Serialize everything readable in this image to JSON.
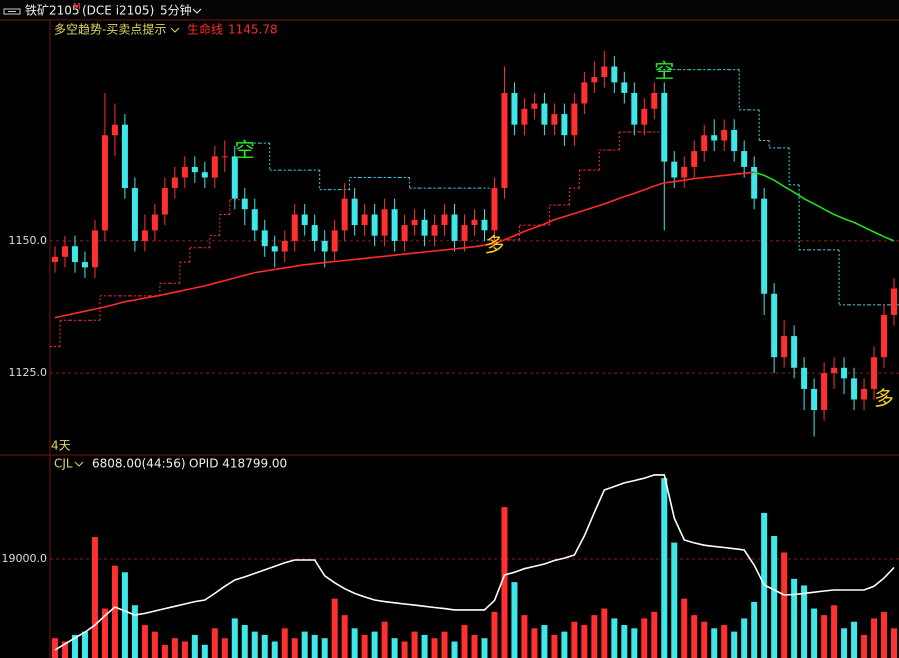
{
  "toolbar": {
    "symbol": "铁矿2105",
    "flag": "M",
    "code": "(DCE i2105)",
    "period": "5分钟"
  },
  "chart_data": [
    {
      "type": "candlestick",
      "indicator": "多空趋势-买卖点提示",
      "span_label": "4天",
      "lifeline": {
        "name": "生命线",
        "value": 1145.78,
        "color": "#ff2a2a"
      },
      "up_color": "#ff3030",
      "down_color": "#3ee8e8",
      "ylim": [
        1109.5,
        1191.8
      ],
      "yticks": [
        {
          "value": 1125,
          "label": "1125.0"
        },
        {
          "value": 1150,
          "label": "1150.0"
        }
      ],
      "grid": true,
      "open": [
        1146,
        1147,
        1149,
        1146,
        1145,
        1152,
        1170,
        1172,
        1160,
        1150,
        1152,
        1155,
        1160,
        1162,
        1164,
        1163,
        1162,
        1166,
        1166,
        1158,
        1156,
        1152,
        1149,
        1148,
        1150,
        1155,
        1153,
        1150,
        1148,
        1152,
        1158,
        1153,
        1155,
        1151,
        1156,
        1150,
        1153,
        1154,
        1151,
        1153,
        1155,
        1150,
        1153,
        1154,
        1152,
        1160,
        1178,
        1172,
        1175,
        1176,
        1172,
        1174,
        1170,
        1176,
        1180,
        1181,
        1183,
        1180,
        1178,
        1172,
        1175,
        1178,
        1165,
        1162,
        1164,
        1167,
        1170,
        1169,
        1171,
        1167,
        1164,
        1158,
        1140,
        1128,
        1132,
        1126,
        1122,
        1118,
        1125,
        1126,
        1124,
        1120,
        1122,
        1128,
        1136
      ],
      "high": [
        1149,
        1151,
        1151,
        1148,
        1154,
        1178,
        1176,
        1174,
        1162,
        1155,
        1157,
        1162,
        1164,
        1166,
        1166,
        1165,
        1168,
        1169,
        1168,
        1160,
        1158,
        1154,
        1151,
        1152,
        1157,
        1157,
        1155,
        1152,
        1154,
        1161,
        1160,
        1157,
        1157,
        1158,
        1158,
        1155,
        1156,
        1156,
        1155,
        1157,
        1157,
        1155,
        1156,
        1156,
        1162,
        1183,
        1180,
        1177,
        1178,
        1178,
        1176,
        1176,
        1178,
        1182,
        1184,
        1186,
        1185,
        1182,
        1180,
        1177,
        1180,
        1180,
        1167,
        1166,
        1169,
        1172,
        1173,
        1173,
        1173,
        1169,
        1166,
        1160,
        1142,
        1135,
        1134,
        1128,
        1124,
        1127,
        1128,
        1128,
        1126,
        1124,
        1130,
        1138,
        1143
      ],
      "low": [
        1144,
        1145,
        1144,
        1143,
        1143,
        1150,
        1166,
        1158,
        1148,
        1148,
        1150,
        1153,
        1158,
        1160,
        1161,
        1160,
        1160,
        1163,
        1156,
        1153,
        1150,
        1147,
        1145,
        1146,
        1148,
        1151,
        1148,
        1145,
        1146,
        1150,
        1151,
        1151,
        1149,
        1149,
        1148,
        1148,
        1151,
        1149,
        1149,
        1151,
        1148,
        1148,
        1151,
        1150,
        1150,
        1158,
        1170,
        1170,
        1173,
        1170,
        1170,
        1168,
        1168,
        1174,
        1178,
        1179,
        1178,
        1176,
        1170,
        1170,
        1173,
        1152,
        1160,
        1160,
        1162,
        1165,
        1167,
        1167,
        1165,
        1162,
        1156,
        1136,
        1125,
        1126,
        1124,
        1118,
        1113,
        1116,
        1122,
        1121,
        1118,
        1118,
        1120,
        1126,
        1134
      ],
      "close": [
        1147,
        1149,
        1146,
        1145,
        1152,
        1170,
        1172,
        1160,
        1150,
        1152,
        1155,
        1160,
        1162,
        1164,
        1163,
        1162,
        1166,
        1166,
        1158,
        1156,
        1152,
        1149,
        1148,
        1150,
        1155,
        1153,
        1150,
        1148,
        1152,
        1158,
        1153,
        1155,
        1151,
        1156,
        1150,
        1153,
        1154,
        1151,
        1153,
        1155,
        1150,
        1153,
        1154,
        1152,
        1160,
        1178,
        1172,
        1175,
        1176,
        1172,
        1174,
        1170,
        1176,
        1180,
        1181,
        1183,
        1180,
        1178,
        1172,
        1175,
        1178,
        1165,
        1162,
        1164,
        1167,
        1170,
        1169,
        1171,
        1167,
        1164,
        1158,
        1140,
        1128,
        1132,
        1126,
        1122,
        1118,
        1125,
        1126,
        1124,
        1120,
        1122,
        1128,
        1136,
        1141
      ],
      "lines": [
        {
          "color": "#ff2a2a",
          "values": [
            1135.5,
            1135.9,
            1136.3,
            1136.7,
            1137.1,
            1137.5,
            1138,
            1138.5,
            1138.8,
            1139.2,
            1139.5,
            1139.9,
            1140.3,
            1140.7,
            1141.1,
            1141.5,
            1142,
            1142.5,
            1143,
            1143.5,
            1144,
            1144.3,
            1144.6,
            1144.9,
            1145.2,
            1145.5,
            1145.7,
            1145.9,
            1146.1,
            1146.3,
            1146.5,
            1146.7,
            1146.9,
            1147.1,
            1147.3,
            1147.5,
            1147.7,
            1147.9,
            1148.1,
            1148.3,
            1148.5,
            1148.7,
            1148.9,
            1149.2,
            1149.5,
            1150.2,
            1151,
            1151.8,
            1152.5,
            1153.2,
            1154,
            1154.6,
            1155.2,
            1155.8,
            1156.4,
            1157,
            1157.7,
            1158.4,
            1159,
            1159.7,
            1160.4,
            1161,
            1161.2,
            1161.5,
            1161.8,
            1162,
            1162.2,
            1162.4,
            1162.6,
            1162.8,
            1163,
            null,
            null,
            null,
            null,
            null,
            null,
            null,
            null,
            null,
            null,
            null,
            null,
            null,
            null
          ]
        },
        {
          "color": "#22dd22",
          "values": [
            null,
            null,
            null,
            null,
            null,
            null,
            null,
            null,
            null,
            null,
            null,
            null,
            null,
            null,
            null,
            null,
            null,
            null,
            null,
            null,
            null,
            null,
            null,
            null,
            null,
            null,
            null,
            null,
            null,
            null,
            null,
            null,
            null,
            null,
            null,
            null,
            null,
            null,
            null,
            null,
            null,
            null,
            null,
            null,
            null,
            null,
            null,
            null,
            null,
            null,
            null,
            null,
            null,
            null,
            null,
            null,
            null,
            null,
            null,
            null,
            null,
            null,
            null,
            null,
            null,
            null,
            null,
            null,
            null,
            null,
            1163,
            1162.4,
            1161.5,
            1160.3,
            1159.2,
            1158,
            1157,
            1156,
            1155,
            1154.2,
            1153.5,
            1152.6,
            1151.7,
            1150.8,
            1150
          ]
        },
        {
          "color": "#ff3030",
          "dash": true,
          "values": [
            1130,
            1135,
            1135,
            1135,
            1135,
            1139.6,
            1139.6,
            1139.6,
            1139.6,
            1139.6,
            1139.6,
            1142,
            1142,
            1146,
            1148.7,
            1148.7,
            1151,
            1155,
            1157.8,
            null,
            null,
            null,
            null,
            null,
            null,
            null,
            null,
            null,
            null,
            null,
            null,
            null,
            null,
            null,
            null,
            null,
            null,
            null,
            null,
            null,
            null,
            null,
            null,
            null,
            1150.2,
            1150.2,
            1150.2,
            1153,
            1153,
            1153,
            1156.8,
            1156.8,
            1160,
            1163.4,
            1163.4,
            1167.2,
            1167.2,
            1170.6,
            1170.6,
            1170.6,
            1170.6,
            null,
            null,
            null,
            null,
            null,
            null,
            null,
            null,
            null,
            null,
            null,
            null,
            null,
            null,
            null,
            null,
            null,
            null,
            null,
            null,
            null,
            null,
            null,
            null
          ]
        },
        {
          "color": "#40d8e8",
          "dash": true,
          "values": [
            null,
            null,
            null,
            null,
            null,
            null,
            null,
            null,
            null,
            null,
            null,
            null,
            null,
            null,
            null,
            null,
            null,
            null,
            null,
            1168.5,
            1168.5,
            1168.5,
            1163.4,
            1163.4,
            1163.4,
            1163.4,
            1163.4,
            1159.7,
            1159.7,
            1159.7,
            1162,
            1162,
            1162,
            1162,
            1162,
            1162,
            1160,
            1160,
            1160,
            1160,
            1160,
            1160,
            1160,
            1160,
            null,
            null,
            null,
            null,
            null,
            null,
            null,
            null,
            null,
            null,
            null,
            null,
            null,
            null,
            null,
            null,
            null,
            1182.4,
            1182.4,
            1182.4,
            1182.4,
            1182.4,
            1182.4,
            1182.4,
            1182.4,
            1174.8,
            1174.8,
            1169,
            1167.6,
            1167.6,
            1160.6,
            1148.3,
            1148.3,
            1148.3,
            1148.3,
            1137.9,
            1137.9,
            1137.9,
            1137.9,
            1137.9,
            1137.9
          ]
        }
      ],
      "signals": [
        {
          "label": "空",
          "index": 19,
          "value": 1167,
          "color": "#22ee22"
        },
        {
          "label": "多",
          "index": 44,
          "value": 1149,
          "color": "#f0d020"
        },
        {
          "label": "空",
          "index": 61,
          "value": 1182,
          "color": "#22ee22"
        },
        {
          "label": "多",
          "index": 83,
          "value": 1120,
          "color": "#f0d020"
        }
      ]
    },
    {
      "type": "bar",
      "label": "CJL",
      "readout": "6808.00(44:56)",
      "oi_label": "OPID 418799.00",
      "ylim": [
        16000,
        21700
      ],
      "yticks": [
        {
          "value": 19000,
          "label": "19000.0"
        }
      ],
      "grid": true,
      "values": [
        16600,
        16500,
        16700,
        16800,
        19667,
        17500,
        18800,
        18600,
        17600,
        17000,
        16800,
        16400,
        16600,
        16500,
        16700,
        16400,
        16900,
        16600,
        17200,
        17000,
        16800,
        16700,
        16500,
        16900,
        16600,
        16800,
        16700,
        16600,
        17800,
        17300,
        16900,
        16700,
        16800,
        17100,
        16600,
        16500,
        16800,
        16700,
        16600,
        16800,
        16500,
        17000,
        16700,
        16600,
        17400,
        20576,
        18300,
        17300,
        16900,
        17000,
        16700,
        16800,
        17100,
        17000,
        17300,
        17500,
        17200,
        17000,
        16900,
        17200,
        17400,
        21455,
        19500,
        17800,
        17300,
        17100,
        16900,
        17000,
        16800,
        17200,
        17700,
        20400,
        19700,
        19200,
        18400,
        18200,
        17500,
        17300,
        17600,
        16900,
        17100,
        16700,
        17200,
        17400,
        16900
      ],
      "y2lim": [
        411100,
        427100
      ],
      "series": [
        {
          "color": "#ffffff",
          "axis": "y2",
          "values": [
            411780,
            412300,
            412800,
            413300,
            413900,
            414700,
            415440,
            415100,
            414760,
            414900,
            415100,
            415300,
            415500,
            415700,
            415900,
            416040,
            416600,
            417200,
            417740,
            418000,
            418300,
            418600,
            418900,
            419200,
            419440,
            419440,
            419440,
            418100,
            417500,
            417000,
            416600,
            416300,
            416040,
            415900,
            415800,
            415700,
            415600,
            415500,
            415400,
            415300,
            415190,
            415190,
            415190,
            415190,
            416000,
            418160,
            418400,
            418700,
            418900,
            419100,
            419400,
            419600,
            419870,
            421500,
            423500,
            425400,
            425700,
            426000,
            426200,
            426400,
            426680,
            426680,
            423000,
            421140,
            420900,
            420700,
            420600,
            420500,
            420400,
            420290,
            419000,
            417310,
            416900,
            416460,
            416500,
            416600,
            416700,
            416800,
            416890,
            416890,
            416890,
            416890,
            417200,
            417900,
            418799
          ]
        }
      ]
    }
  ]
}
